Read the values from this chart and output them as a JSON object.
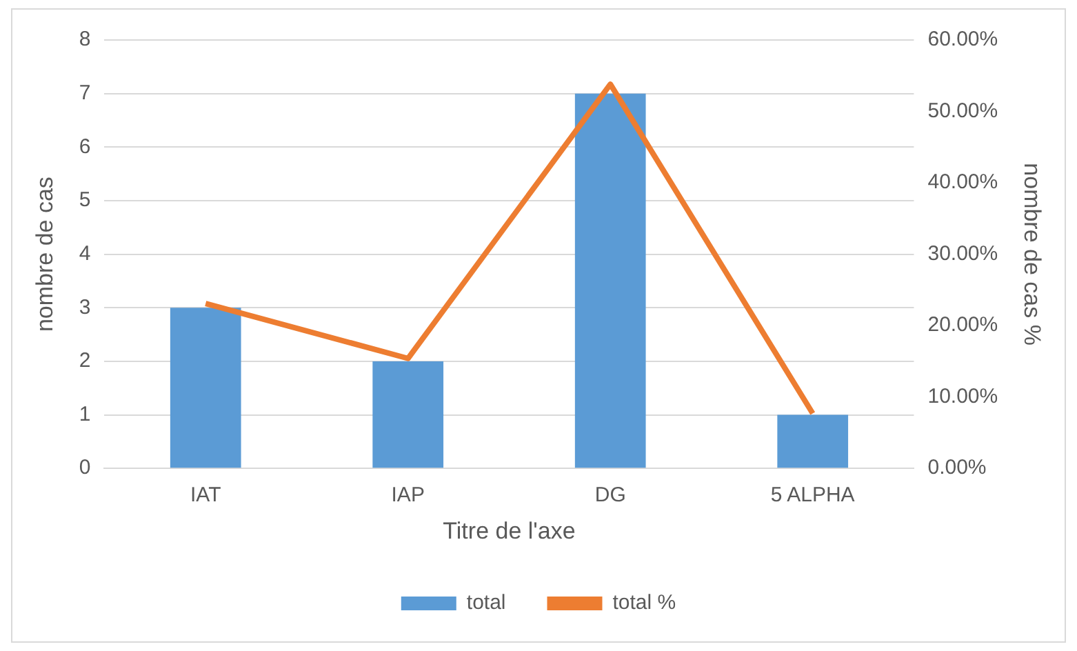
{
  "chart_data": {
    "type": "bar",
    "xlabel": "Titre de l'axe",
    "ylabel": "nombre de cas",
    "y2label": "nombre de cas %",
    "categories": [
      "IAT",
      "IAP",
      "DG",
      "5 ALPHA"
    ],
    "series": [
      {
        "name": "total",
        "color": "#5b9bd5",
        "values": [
          3,
          2,
          7,
          1
        ]
      },
      {
        "name": "total %",
        "type": "line",
        "axis": "y2",
        "color": "#ed7d31",
        "values": [
          23.1,
          15.4,
          53.8,
          7.7
        ]
      }
    ],
    "ylim": [
      0,
      8
    ],
    "yticks": [
      0,
      1,
      2,
      3,
      4,
      5,
      6,
      7,
      8
    ],
    "y2lim": [
      0,
      60
    ],
    "y2ticks": [
      {
        "value": 0,
        "label": "0.00%"
      },
      {
        "value": 10,
        "label": "10.00%"
      },
      {
        "value": 20,
        "label": "20.00%"
      },
      {
        "value": 30,
        "label": "30.00%"
      },
      {
        "value": 40,
        "label": "40.00%"
      },
      {
        "value": 50,
        "label": "50.00%"
      },
      {
        "value": 60,
        "label": "60.00%"
      }
    ],
    "grid": "y",
    "legend": "bottom",
    "marker": "none",
    "line_style": "solid"
  }
}
